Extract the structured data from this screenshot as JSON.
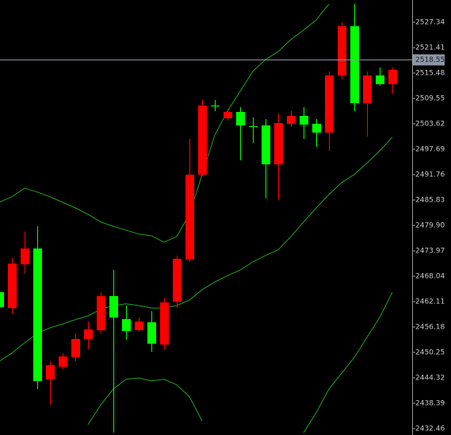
{
  "chart_data": {
    "type": "candlestick",
    "up_color": "#ff0000",
    "down_color": "#00ff00",
    "band_color": "#1fa21f",
    "ylim": [
      2430.98,
      2532.53
    ],
    "yticks": [
      2527.34,
      2521.41,
      2515.48,
      2509.55,
      2503.62,
      2497.69,
      2491.76,
      2485.83,
      {
        "value": 2479.9,
        "label": "2479.90"
      },
      2473.97,
      2468.04,
      2462.11,
      2456.18,
      2450.25,
      2444.32,
      2438.39,
      2432.46
    ],
    "current_price": 2518.55,
    "open": [
      2464.33,
      2460.63,
      2470.82,
      2474.52,
      2443.95,
      2446.91,
      2449.14,
      2453.4,
      2455.44,
      2463.41,
      2458.03,
      2455.44,
      2457.29,
      2452.1,
      2462.11,
      2471.93,
      2491.76,
      2507.88,
      2504.92,
      2506.4,
      2503.06,
      2503.25,
      2494.17,
      2503.62,
      2505.47,
      2503.62,
      2501.58,
      2514.92,
      2526.41,
      2508.44,
      2514.92,
      2512.89
    ],
    "high": [
      2465.81,
      2472.3,
      2478.42,
      2479.71,
      2448.21,
      2450.06,
      2454.7,
      2457.48,
      2464.33,
      2469.52,
      2461.18,
      2458.4,
      2459.88,
      2463.03,
      2472.86,
      2500.1,
      2509.36,
      2509.18,
      2507.14,
      2507.51,
      2505.1,
      2504.73,
      2506.03,
      2506.59,
      2507.51,
      2504.73,
      2515.85,
      2527.34,
      2531.6,
      2515.85,
      2516.78,
      2516.78
    ],
    "low": [
      2460.26,
      2459.33,
      2468.59,
      2441.72,
      2438.02,
      2446.36,
      2448.21,
      2450.99,
      2454.7,
      2431.53,
      2453.22,
      2455.07,
      2450.43,
      2450.99,
      2460.63,
      2471.37,
      2491.39,
      2506.59,
      2504.36,
      2495.1,
      2499.17,
      2486.2,
      2485.83,
      2502.88,
      2500.1,
      2498.25,
      2497.32,
      2514.0,
      2506.59,
      2500.65,
      2512.52,
      2510.66
    ],
    "close": [
      2460.81,
      2471.0,
      2474.52,
      2443.58,
      2447.28,
      2449.32,
      2453.4,
      2455.62,
      2463.41,
      2458.4,
      2455.25,
      2457.48,
      2452.29,
      2461.92,
      2472.12,
      2491.76,
      2507.88,
      2507.7,
      2506.4,
      2503.25,
      2502.88,
      2494.17,
      2503.81,
      2505.47,
      2503.43,
      2501.58,
      2514.92,
      2526.41,
      2508.44,
      2514.92,
      2512.89,
      2516.22
    ],
    "bands": [
      {
        "values": [
          2485.3,
          2486.6,
          2488.6,
          2487.7,
          2486.6,
          2485.3,
          2484.0,
          2482.5,
          2480.7,
          2479.7,
          2478.8,
          2477.9,
          2477.5,
          2476.0,
          2477.3,
          2482.5,
          2491.8,
          2501.0,
          2506.6,
          2511.2,
          2515.9,
          2518.6,
          2520.5,
          2523.3,
          2525.5,
          2527.9,
          2531.6,
          null,
          null,
          null,
          null,
          null
        ]
      },
      {
        "values": [
          2448.2,
          2450.1,
          2452.5,
          2454.7,
          2456.0,
          2456.9,
          2457.9,
          2458.8,
          2460.3,
          2461.2,
          2461.6,
          2461.2,
          2460.6,
          2460.6,
          2461.2,
          2462.5,
          2464.9,
          2466.7,
          2468.2,
          2469.5,
          2471.4,
          2472.9,
          2474.2,
          2477.3,
          2480.7,
          2484.0,
          2487.1,
          2489.9,
          2491.8,
          2494.5,
          2497.3,
          2500.5
        ]
      },
      {
        "values": [
          null,
          null,
          null,
          null,
          null,
          null,
          null,
          2433.4,
          2438.0,
          2441.7,
          2444.0,
          2444.3,
          2443.6,
          2444.0,
          2442.7,
          2439.9,
          2434.3,
          null,
          null,
          null,
          null,
          null,
          null,
          null,
          2431.5,
          2436.2,
          2441.7,
          2445.4,
          2449.1,
          2453.8,
          2458.4,
          2464.3
        ]
      }
    ]
  }
}
